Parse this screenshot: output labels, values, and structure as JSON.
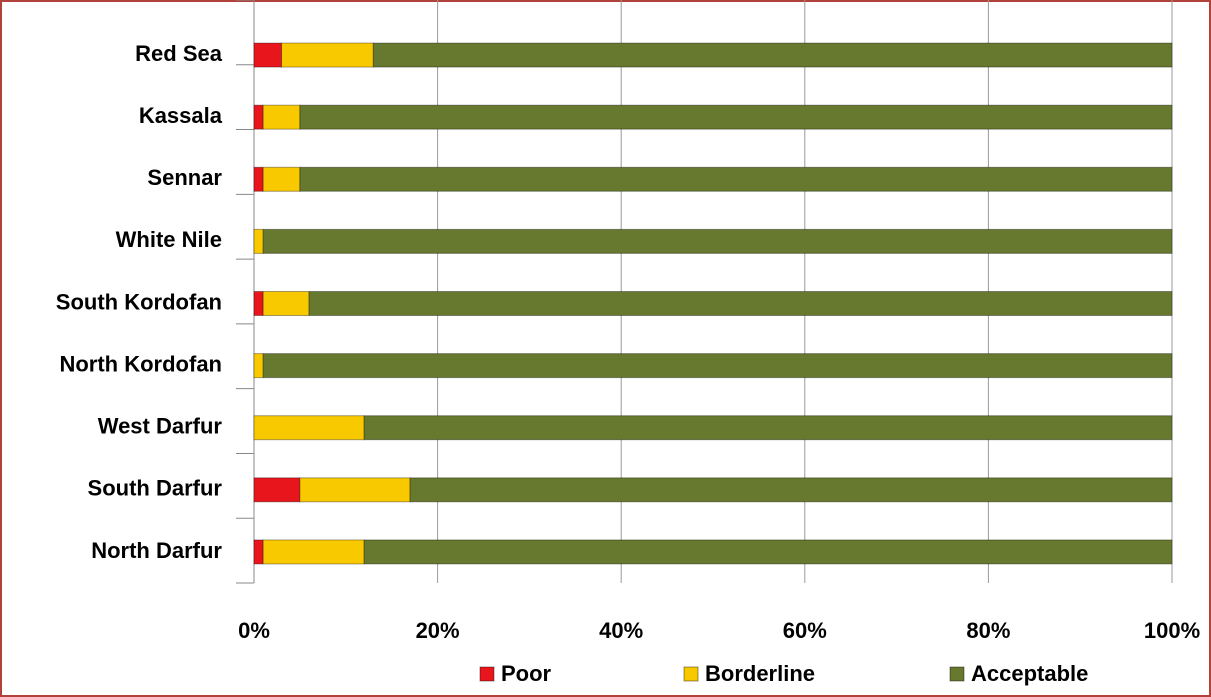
{
  "chart_data": {
    "type": "stacked-bar-horizontal",
    "categories": [
      "Red Sea",
      "Kassala",
      "Sennar",
      "White Nile",
      "South Kordofan",
      "North Kordofan",
      "West Darfur",
      "South Darfur",
      "North Darfur"
    ],
    "series": [
      {
        "name": "Poor",
        "color": "#e8161c",
        "values": [
          3,
          1,
          1,
          0,
          1,
          0,
          0,
          5,
          1
        ]
      },
      {
        "name": "Borderline",
        "color": "#f9c900",
        "values": [
          10,
          4,
          4,
          1,
          5,
          1,
          12,
          12,
          11
        ]
      },
      {
        "name": "Acceptable",
        "color": "#66792e",
        "values": [
          87,
          95,
          95,
          99,
          94,
          99,
          88,
          83,
          88
        ]
      }
    ],
    "xlim": [
      0,
      100
    ],
    "xticks": [
      {
        "value": 0,
        "label": "0%"
      },
      {
        "value": 20,
        "label": "20%"
      },
      {
        "value": 40,
        "label": "40%"
      },
      {
        "value": 60,
        "label": "60%"
      },
      {
        "value": 80,
        "label": "80%"
      },
      {
        "value": 100,
        "label": "100%"
      }
    ],
    "grid": true,
    "legend": "bottom"
  }
}
